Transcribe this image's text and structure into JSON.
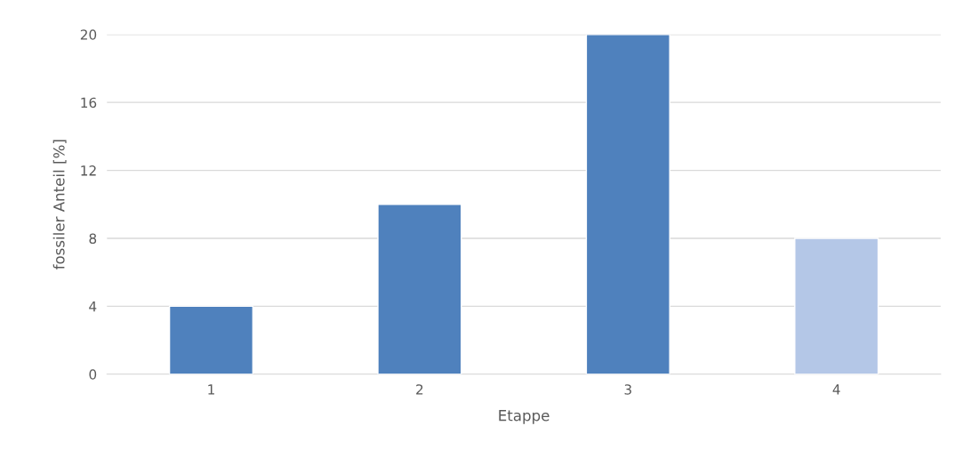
{
  "chart_data": {
    "type": "bar",
    "xlabel": "Etappe",
    "ylabel": "fossiler Anteil [%]",
    "categories": [
      "1",
      "2",
      "3",
      "4"
    ],
    "values": [
      4,
      10,
      20,
      8
    ],
    "colors": [
      "#4f81bd",
      "#4f81bd",
      "#4f81bd",
      "#b4c7e7"
    ],
    "ylim": [
      0,
      20
    ],
    "yticks": [
      0,
      4,
      8,
      12,
      16,
      20
    ],
    "grid": "y"
  }
}
